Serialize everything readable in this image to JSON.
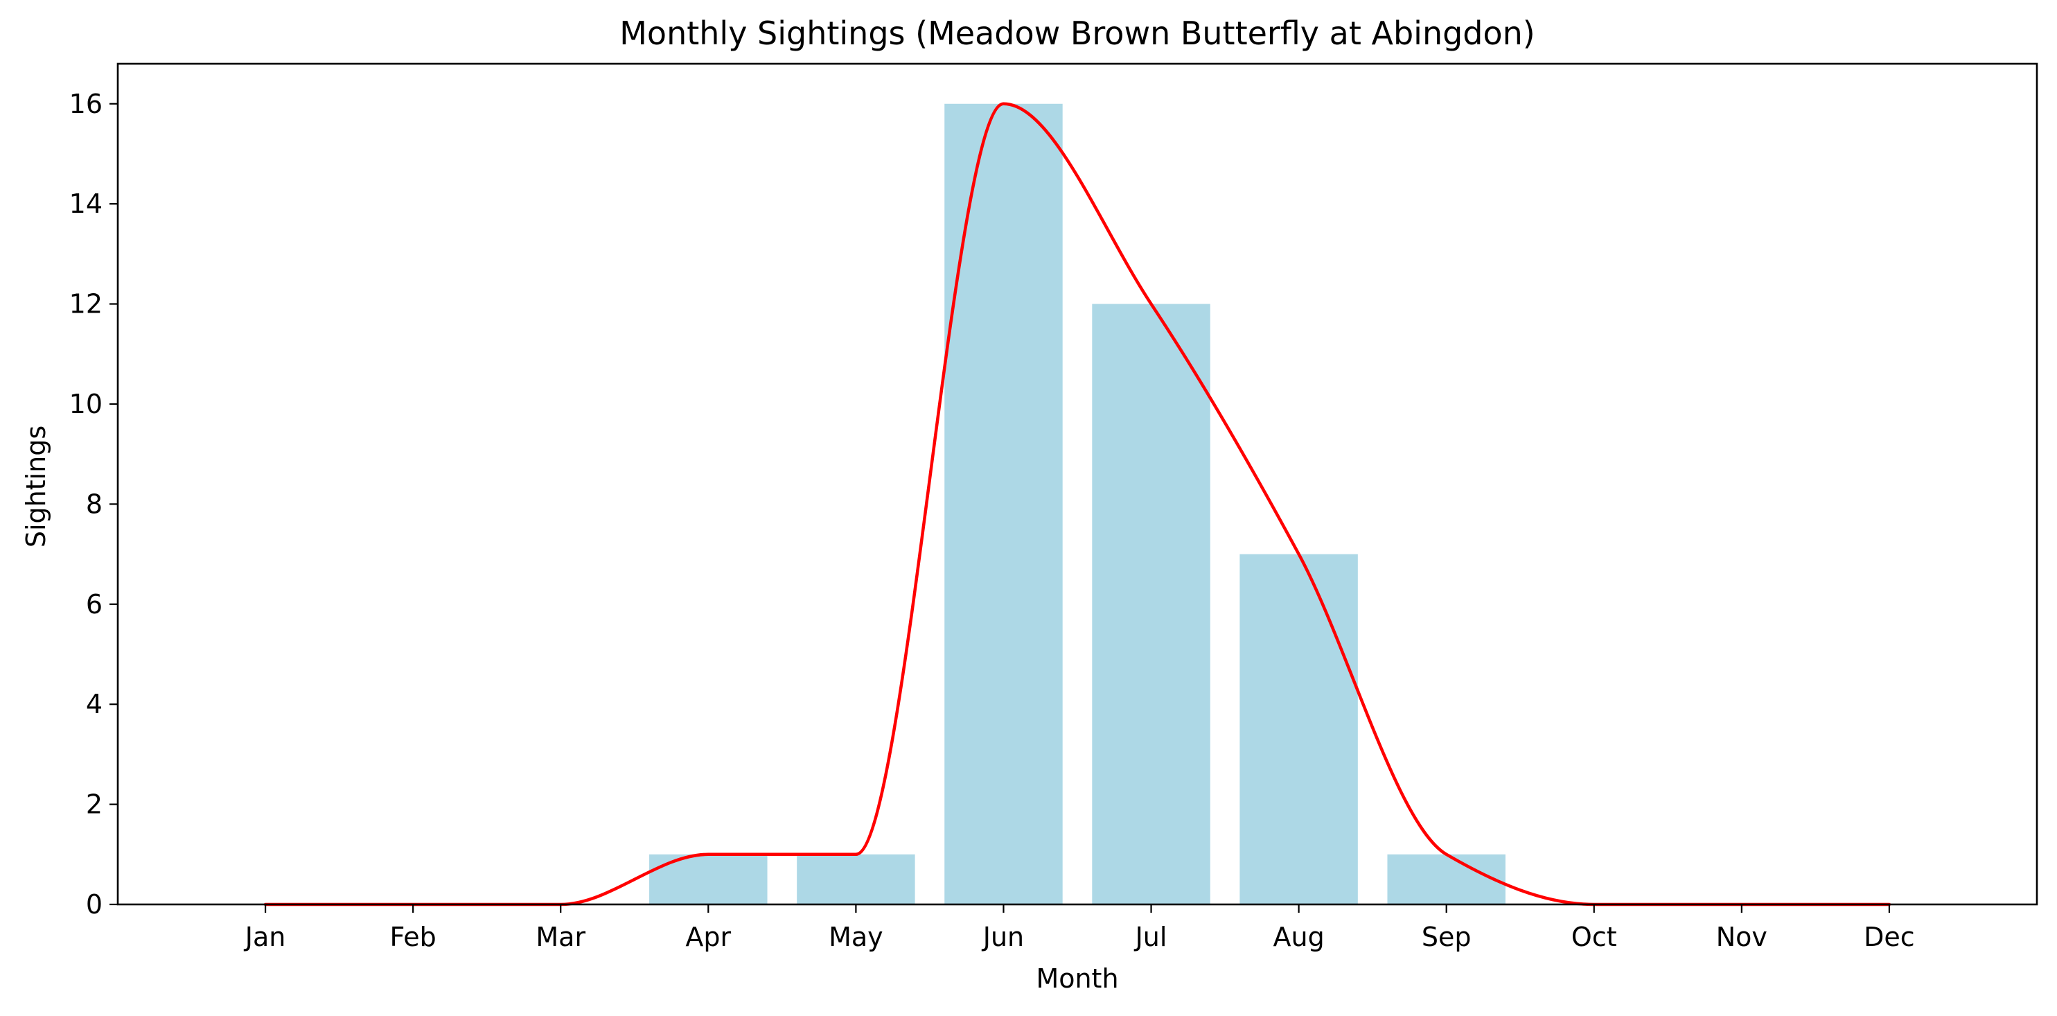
{
  "chart_data": {
    "type": "bar",
    "title": "Monthly Sightings (Meadow Brown Butterfly at Abingdon)",
    "xlabel": "Month",
    "ylabel": "Sightings",
    "categories": [
      "Jan",
      "Feb",
      "Mar",
      "Apr",
      "May",
      "Jun",
      "Jul",
      "Aug",
      "Sep",
      "Oct",
      "Nov",
      "Dec"
    ],
    "values": [
      0,
      0,
      0,
      1,
      1,
      16,
      12,
      7,
      1,
      0,
      0,
      0
    ],
    "ylim": [
      0,
      16.8
    ],
    "yticks": [
      0,
      2,
      4,
      6,
      8,
      10,
      12,
      14,
      16
    ],
    "grid": false,
    "overlay": {
      "type": "line",
      "smoothed": true
    },
    "colors": {
      "bar": "#add8e6",
      "line": "#ff0000",
      "axis": "#000000"
    }
  }
}
